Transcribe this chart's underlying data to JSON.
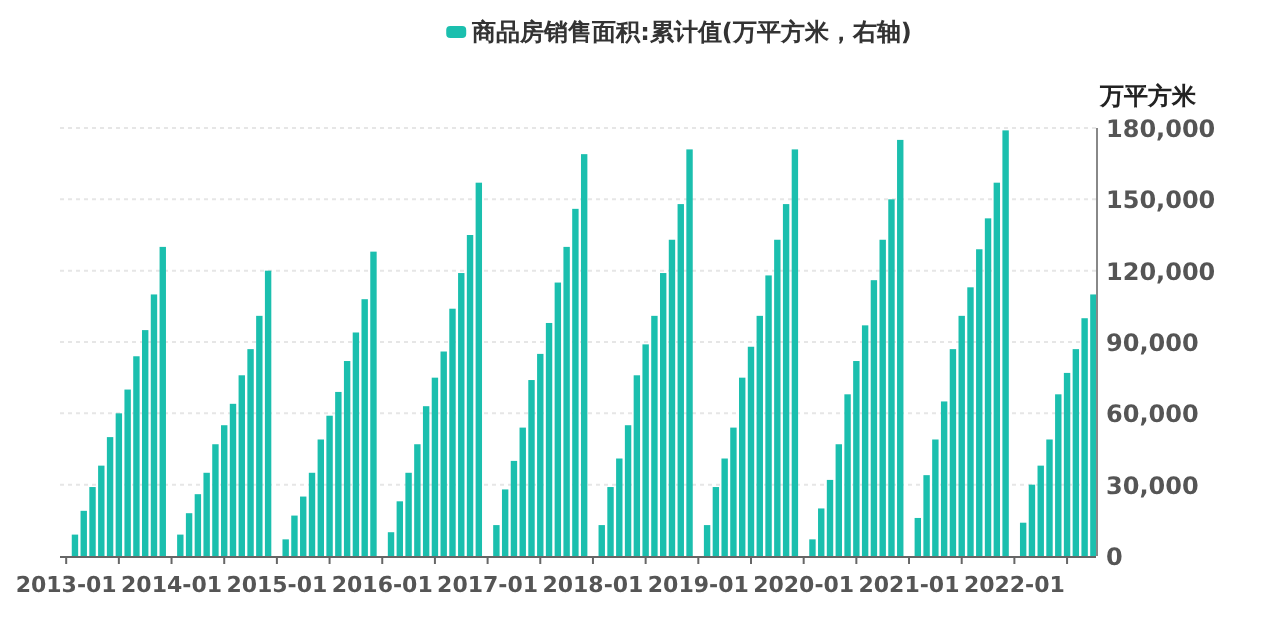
{
  "chart_data": {
    "type": "bar",
    "x": [
      "2013-02",
      "2013-03",
      "2013-04",
      "2013-05",
      "2013-06",
      "2013-07",
      "2013-08",
      "2013-09",
      "2013-10",
      "2013-11",
      "2013-12",
      "2014-02",
      "2014-03",
      "2014-04",
      "2014-05",
      "2014-06",
      "2014-07",
      "2014-08",
      "2014-09",
      "2014-10",
      "2014-11",
      "2014-12",
      "2015-02",
      "2015-03",
      "2015-04",
      "2015-05",
      "2015-06",
      "2015-07",
      "2015-08",
      "2015-09",
      "2015-10",
      "2015-11",
      "2015-12",
      "2016-02",
      "2016-03",
      "2016-04",
      "2016-05",
      "2016-06",
      "2016-07",
      "2016-08",
      "2016-09",
      "2016-10",
      "2016-11",
      "2016-12",
      "2017-02",
      "2017-03",
      "2017-04",
      "2017-05",
      "2017-06",
      "2017-07",
      "2017-08",
      "2017-09",
      "2017-10",
      "2017-11",
      "2017-12",
      "2018-02",
      "2018-03",
      "2018-04",
      "2018-05",
      "2018-06",
      "2018-07",
      "2018-08",
      "2018-09",
      "2018-10",
      "2018-11",
      "2018-12",
      "2019-02",
      "2019-03",
      "2019-04",
      "2019-05",
      "2019-06",
      "2019-07",
      "2019-08",
      "2019-09",
      "2019-10",
      "2019-11",
      "2019-12",
      "2020-02",
      "2020-03",
      "2020-04",
      "2020-05",
      "2020-06",
      "2020-07",
      "2020-08",
      "2020-09",
      "2020-10",
      "2020-11",
      "2020-12",
      "2021-02",
      "2021-03",
      "2021-04",
      "2021-05",
      "2021-06",
      "2021-07",
      "2021-08",
      "2021-09",
      "2021-10",
      "2021-11",
      "2021-12",
      "2022-02",
      "2022-03",
      "2022-04",
      "2022-05",
      "2022-06",
      "2022-07",
      "2022-08",
      "2022-09",
      "2022-10"
    ],
    "series": [
      {
        "name": "商品房销售面积:累计值(万平方米，右轴)",
        "color": "#1bbfae",
        "axis": "y2",
        "values": [
          9000,
          19000,
          29000,
          38000,
          50000,
          60000,
          70000,
          84000,
          95000,
          110000,
          130000,
          9000,
          18000,
          26000,
          35000,
          47000,
          55000,
          64000,
          76000,
          87000,
          101000,
          120000,
          7000,
          17000,
          25000,
          35000,
          49000,
          59000,
          69000,
          82000,
          94000,
          108000,
          128000,
          10000,
          23000,
          35000,
          47000,
          63000,
          75000,
          86000,
          104000,
          119000,
          135000,
          157000,
          13000,
          28000,
          40000,
          54000,
          74000,
          85000,
          98000,
          115000,
          130000,
          146000,
          169000,
          13000,
          29000,
          41000,
          55000,
          76000,
          89000,
          101000,
          119000,
          133000,
          148000,
          171000,
          13000,
          29000,
          41000,
          54000,
          75000,
          88000,
          101000,
          118000,
          133000,
          148000,
          171000,
          7000,
          20000,
          32000,
          47000,
          68000,
          82000,
          97000,
          116000,
          133000,
          150000,
          175000,
          16000,
          34000,
          49000,
          65000,
          87000,
          101000,
          113000,
          129000,
          142000,
          157000,
          179000,
          14000,
          30000,
          38000,
          49000,
          68000,
          77000,
          87000,
          100000,
          110000
        ]
      }
    ],
    "xlim": [
      "2012-12-10",
      "2022-10-10"
    ],
    "xticks": [
      {
        "value": "2013-01",
        "label": "2013-01"
      },
      {
        "value": "2013-07",
        "label": null
      },
      {
        "value": "2014-01",
        "label": "2014-01"
      },
      {
        "value": "2014-07",
        "label": null
      },
      {
        "value": "2015-01",
        "label": "2015-01"
      },
      {
        "value": "2015-07",
        "label": null
      },
      {
        "value": "2016-01",
        "label": "2016-01"
      },
      {
        "value": "2016-07",
        "label": null
      },
      {
        "value": "2017-01",
        "label": "2017-01"
      },
      {
        "value": "2017-07",
        "label": null
      },
      {
        "value": "2018-01",
        "label": "2018-01"
      },
      {
        "value": "2018-07",
        "label": null
      },
      {
        "value": "2019-01",
        "label": "2019-01"
      },
      {
        "value": "2019-07",
        "label": null
      },
      {
        "value": "2020-01",
        "label": "2020-01"
      },
      {
        "value": "2020-07",
        "label": null
      },
      {
        "value": "2021-01",
        "label": "2021-01"
      },
      {
        "value": "2021-07",
        "label": null
      },
      {
        "value": "2022-01",
        "label": "2022-01"
      },
      {
        "value": "2022-07",
        "label": null
      }
    ],
    "y2label": "万平方米",
    "y2lim": [
      0,
      180000
    ],
    "y2ticks": [
      0,
      {
        "value": 30000,
        "label": "30,000"
      },
      {
        "value": 60000,
        "label": "60,000"
      },
      {
        "value": 90000,
        "label": "90,000"
      },
      {
        "value": 120000,
        "label": "120,000"
      },
      {
        "value": 150000,
        "label": "150,000"
      },
      {
        "value": 180000,
        "label": "180,000"
      }
    ],
    "grid": "y",
    "legend": "top"
  }
}
